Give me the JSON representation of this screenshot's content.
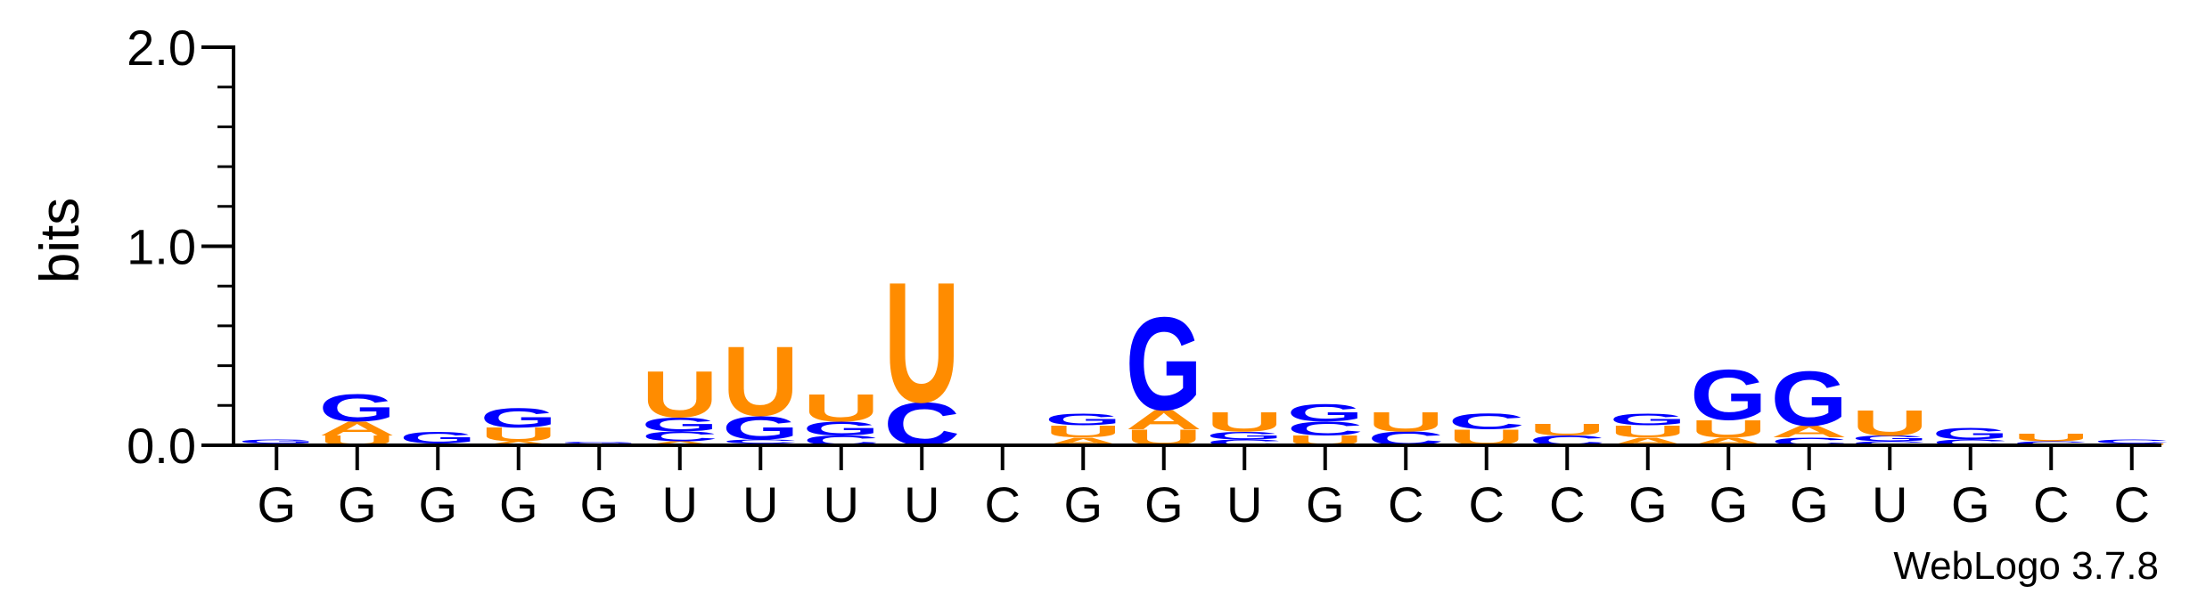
{
  "chart_data": {
    "type": "sequence-logo",
    "ylabel": "bits",
    "ylim": [
      0,
      2.0
    ],
    "yticks": [
      "0.0",
      "1.0",
      "2.0"
    ],
    "credit": "WebLogo 3.7.8",
    "colors": {
      "U": "#ff8c00",
      "G": "#0000ff",
      "A": "#ff8c00",
      "C": "#0000ff"
    },
    "positions": [
      {
        "label": "G",
        "stack": [
          {
            "letter": "U",
            "bits": 0.01
          },
          {
            "letter": "G",
            "bits": 0.02
          }
        ]
      },
      {
        "label": "G",
        "stack": [
          {
            "letter": "U",
            "bits": 0.05
          },
          {
            "letter": "A",
            "bits": 0.07
          },
          {
            "letter": "G",
            "bits": 0.14
          }
        ]
      },
      {
        "label": "G",
        "stack": [
          {
            "letter": "U",
            "bits": 0.01
          },
          {
            "letter": "G",
            "bits": 0.06
          }
        ]
      },
      {
        "label": "G",
        "stack": [
          {
            "letter": "A",
            "bits": 0.02
          },
          {
            "letter": "U",
            "bits": 0.07
          },
          {
            "letter": "G",
            "bits": 0.1
          }
        ]
      },
      {
        "label": "G",
        "stack": [
          {
            "letter": "U",
            "bits": 0.01
          },
          {
            "letter": "G",
            "bits": 0.01
          }
        ]
      },
      {
        "label": "U",
        "stack": [
          {
            "letter": "A",
            "bits": 0.02
          },
          {
            "letter": "C",
            "bits": 0.05
          },
          {
            "letter": "G",
            "bits": 0.07
          },
          {
            "letter": "U",
            "bits": 0.24
          }
        ]
      },
      {
        "label": "U",
        "stack": [
          {
            "letter": "A",
            "bits": 0.01
          },
          {
            "letter": "C",
            "bits": 0.02
          },
          {
            "letter": "G",
            "bits": 0.12
          },
          {
            "letter": "U",
            "bits": 0.36
          }
        ]
      },
      {
        "label": "U",
        "stack": [
          {
            "letter": "C",
            "bits": 0.05
          },
          {
            "letter": "G",
            "bits": 0.07
          },
          {
            "letter": "U",
            "bits": 0.14
          }
        ]
      },
      {
        "label": "U",
        "stack": [
          {
            "letter": "C",
            "bits": 0.22
          },
          {
            "letter": "U",
            "bits": 0.62
          }
        ]
      },
      {
        "label": "C",
        "stack": []
      },
      {
        "label": "G",
        "stack": [
          {
            "letter": "A",
            "bits": 0.04
          },
          {
            "letter": "U",
            "bits": 0.06
          },
          {
            "letter": "G",
            "bits": 0.06
          }
        ]
      },
      {
        "label": "G",
        "stack": [
          {
            "letter": "U",
            "bits": 0.08
          },
          {
            "letter": "A",
            "bits": 0.1
          },
          {
            "letter": "G",
            "bits": 0.48
          }
        ]
      },
      {
        "label": "U",
        "stack": [
          {
            "letter": "C",
            "bits": 0.03
          },
          {
            "letter": "G",
            "bits": 0.04
          },
          {
            "letter": "U",
            "bits": 0.1
          }
        ]
      },
      {
        "label": "G",
        "stack": [
          {
            "letter": "U",
            "bits": 0.05
          },
          {
            "letter": "C",
            "bits": 0.07
          },
          {
            "letter": "G",
            "bits": 0.09
          }
        ]
      },
      {
        "label": "C",
        "stack": [
          {
            "letter": "C",
            "bits": 0.07
          },
          {
            "letter": "U",
            "bits": 0.1
          }
        ]
      },
      {
        "label": "C",
        "stack": [
          {
            "letter": "U",
            "bits": 0.08
          },
          {
            "letter": "C",
            "bits": 0.08
          }
        ]
      },
      {
        "label": "C",
        "stack": [
          {
            "letter": "C",
            "bits": 0.05
          },
          {
            "letter": "U",
            "bits": 0.06
          }
        ]
      },
      {
        "label": "G",
        "stack": [
          {
            "letter": "A",
            "bits": 0.04
          },
          {
            "letter": "U",
            "bits": 0.06
          },
          {
            "letter": "G",
            "bits": 0.06
          }
        ]
      },
      {
        "label": "G",
        "stack": [
          {
            "letter": "A",
            "bits": 0.04
          },
          {
            "letter": "U",
            "bits": 0.09
          },
          {
            "letter": "G",
            "bits": 0.26
          }
        ]
      },
      {
        "label": "G",
        "stack": [
          {
            "letter": "C",
            "bits": 0.04
          },
          {
            "letter": "A",
            "bits": 0.06
          },
          {
            "letter": "G",
            "bits": 0.28
          }
        ]
      },
      {
        "label": "U",
        "stack": [
          {
            "letter": "C",
            "bits": 0.02
          },
          {
            "letter": "G",
            "bits": 0.03
          },
          {
            "letter": "U",
            "bits": 0.13
          }
        ]
      },
      {
        "label": "G",
        "stack": [
          {
            "letter": "C",
            "bits": 0.03
          },
          {
            "letter": "G",
            "bits": 0.06
          }
        ]
      },
      {
        "label": "C",
        "stack": [
          {
            "letter": "C",
            "bits": 0.02
          },
          {
            "letter": "U",
            "bits": 0.04
          }
        ]
      },
      {
        "label": "C",
        "stack": [
          {
            "letter": "U",
            "bits": 0.01
          },
          {
            "letter": "C",
            "bits": 0.02
          }
        ]
      }
    ]
  }
}
